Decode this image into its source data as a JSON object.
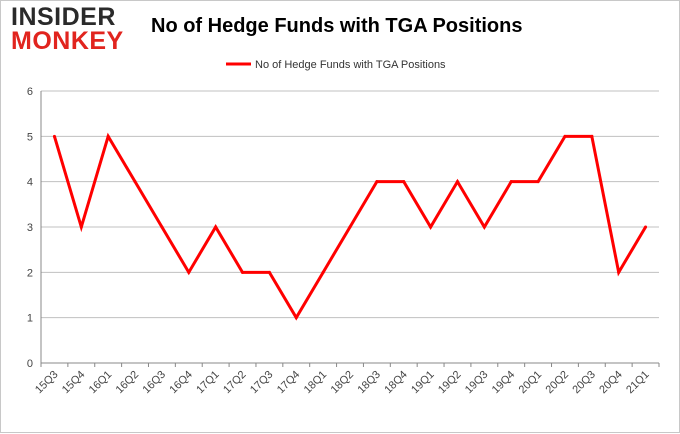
{
  "logo": {
    "line1": "INSIDER",
    "line2": "MONKEY"
  },
  "colors": {
    "series": "#ff0000",
    "grid": "#c0c0c0",
    "axis": "#888888",
    "logo_red": "#e1241e"
  },
  "chart_data": {
    "type": "line",
    "title": "No of Hedge Funds with TGA Positions",
    "xlabel": "",
    "ylabel": "",
    "ylim": [
      0,
      6
    ],
    "yticks": [
      0,
      1,
      2,
      3,
      4,
      5,
      6
    ],
    "grid": true,
    "legend_position": "top-center",
    "categories": [
      "15Q3",
      "15Q4",
      "16Q1",
      "16Q2",
      "16Q3",
      "16Q4",
      "17Q1",
      "17Q2",
      "17Q3",
      "17Q4",
      "18Q1",
      "18Q2",
      "18Q3",
      "18Q4",
      "19Q1",
      "19Q2",
      "19Q3",
      "19Q4",
      "20Q1",
      "20Q2",
      "20Q3",
      "20Q4",
      "21Q1"
    ],
    "series": [
      {
        "name": "No of Hedge Funds with TGA Positions",
        "values": [
          5,
          3,
          5,
          4,
          3,
          2,
          3,
          2,
          2,
          1,
          2,
          3,
          4,
          4,
          3,
          4,
          3,
          4,
          4,
          5,
          5,
          2,
          3
        ]
      }
    ]
  }
}
